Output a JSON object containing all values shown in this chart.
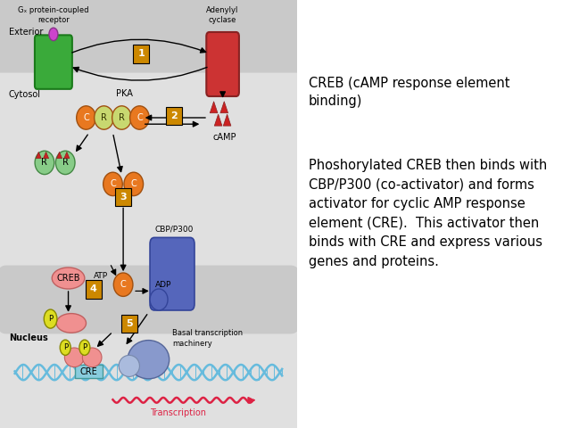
{
  "background_color": "#ffffff",
  "text_block1": "CREB (cAMP response element\nbinding)",
  "text_block2": "Phoshorylated CREB then binds with\nCBP/P300 (co-activator) and forms\nactivator for cyclic AMP response\nelement (CRE).  This activator then\nbinds with CRE and express various\ngenes and proteins.",
  "fig_width": 6.4,
  "fig_height": 4.8,
  "exterior_label": "Exterior",
  "cytosol_label": "Cytosol",
  "nucleus_label": "Nucleus",
  "gs_receptor_label": "Gₓ protein-coupled\nreceptor",
  "adenylyl_cyclase_label": "Adenylyl\ncyclase",
  "camp_label": "cAMP",
  "pka_label": "PKA",
  "atp_label": "ATP",
  "adp_label": "ADP",
  "creb_label": "CREB",
  "cbp_label": "CBP/P300",
  "basal_label": "Basal transcription\nmachinery",
  "cre_label": "CRE",
  "transcription_label": "Transcription"
}
